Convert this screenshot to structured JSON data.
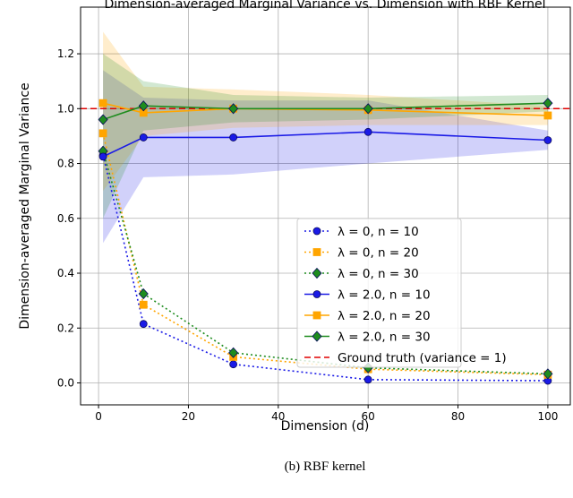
{
  "chart_data": {
    "type": "line",
    "title": "Dimension-averaged Marginal Variance vs. Dimension with RBF Kernel",
    "x_label": "Dimension (d)",
    "y_label": "Dimension-averaged Marginal Variance",
    "caption": "(b) RBF kernel",
    "x": [
      1,
      10,
      30,
      60,
      100
    ],
    "xlim": [
      -4,
      105
    ],
    "ylim": [
      -0.08,
      1.37
    ],
    "xticks": [
      0,
      20,
      40,
      60,
      80,
      100
    ],
    "yticks": [
      {
        "value": 0,
        "label": "0.0"
      },
      {
        "value": 0.2,
        "label": "0.2"
      },
      {
        "value": 0.4,
        "label": "0.4"
      },
      {
        "value": 0.6,
        "label": "0.6"
      },
      {
        "value": 0.8,
        "label": "0.8"
      },
      {
        "value": 1,
        "label": "1.0"
      },
      {
        "value": 1.2,
        "label": "1.2"
      }
    ],
    "grid": true,
    "legend": "lower right",
    "series": [
      {
        "name": "λ = 0, n = 10",
        "color": "#1a1ae6",
        "marker": "circle",
        "linestyle": "dotted",
        "values": [
          0.83,
          0.215,
          0.068,
          0.012,
          0.008
        ]
      },
      {
        "name": "λ = 0, n = 20",
        "color": "#ffa500",
        "marker": "square",
        "linestyle": "dotted",
        "values": [
          0.91,
          0.285,
          0.095,
          0.05,
          0.03
        ]
      },
      {
        "name": "λ = 0, n = 30",
        "color": "#1e8c1e",
        "marker": "diamond",
        "linestyle": "dotted",
        "values": [
          0.845,
          0.325,
          0.11,
          0.055,
          0.033
        ]
      },
      {
        "name": "λ = 2.0, n = 10",
        "color": "#1a1ae6",
        "marker": "circle",
        "linestyle": "solid",
        "values": [
          0.825,
          0.895,
          0.895,
          0.915,
          0.885
        ],
        "band_lower": [
          0.51,
          0.75,
          0.76,
          0.8,
          0.85
        ],
        "band_upper": [
          1.14,
          1.04,
          1.03,
          1.03,
          0.92
        ]
      },
      {
        "name": "λ = 2.0, n = 20",
        "color": "#ffa500",
        "marker": "square",
        "linestyle": "solid",
        "values": [
          1.02,
          0.985,
          1.0,
          0.995,
          0.975
        ],
        "band_lower": [
          0.7,
          0.9,
          0.93,
          0.94,
          0.94
        ],
        "band_upper": [
          1.28,
          1.08,
          1.07,
          1.05,
          1.01
        ]
      },
      {
        "name": "λ = 2.0, n = 30",
        "color": "#1e8c1e",
        "marker": "diamond",
        "linestyle": "solid",
        "values": [
          0.96,
          1.01,
          1.0,
          1.0,
          1.02
        ],
        "band_lower": [
          0.6,
          0.92,
          0.95,
          0.96,
          0.99
        ],
        "band_upper": [
          1.2,
          1.1,
          1.05,
          1.04,
          1.05
        ]
      }
    ],
    "reference_line": {
      "name": "Ground truth (variance = 1)",
      "value": 1,
      "color": "#e00000",
      "linestyle": "dashed"
    }
  }
}
